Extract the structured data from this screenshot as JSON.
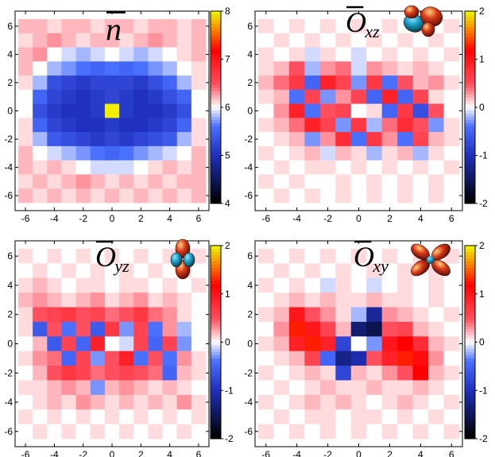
{
  "chart_data": [
    {
      "type": "heatmap",
      "title": "n",
      "title_subscript": "",
      "xlabel": "",
      "ylabel": "",
      "xlim": [
        -6.5,
        6.5
      ],
      "ylim": [
        -6.5,
        6.5
      ],
      "xticks": [
        "-6",
        "-4",
        "-2",
        "0",
        "2",
        "4",
        "6"
      ],
      "yticks": [
        "6",
        "4",
        "2",
        "0",
        "-2",
        "-4",
        "-6"
      ],
      "colorbar": {
        "range": [
          4,
          8
        ],
        "ticks": [
          "8",
          "7",
          "6",
          "5",
          "4"
        ]
      },
      "colormap": [
        [
          0,
          "#000000"
        ],
        [
          0.25,
          "#2030c0"
        ],
        [
          0.4,
          "#4a70ff"
        ],
        [
          0.5,
          "#ffffff"
        ],
        [
          0.62,
          "#ff5060"
        ],
        [
          0.8,
          "#ff0000"
        ],
        [
          1,
          "#f0f000"
        ]
      ],
      "orbital_icon": "none",
      "values": [
        [
          6.2,
          6.2,
          6.1,
          6.2,
          6.2,
          6.1,
          6.2,
          6.2,
          6.1,
          6.2,
          6.2,
          6.1,
          6.2
        ],
        [
          6.1,
          6.2,
          6.3,
          6.2,
          6.1,
          6.2,
          6.2,
          6.1,
          6.2,
          6.3,
          6.2,
          6.1,
          6.2
        ],
        [
          6.2,
          6.3,
          6.0,
          5.9,
          5.8,
          5.9,
          6.0,
          5.9,
          5.8,
          5.9,
          6.0,
          6.1,
          6.2
        ],
        [
          6.2,
          6.0,
          5.8,
          5.7,
          5.6,
          5.5,
          5.6,
          5.5,
          5.6,
          5.7,
          5.8,
          6.0,
          6.1
        ],
        [
          6.1,
          5.8,
          5.3,
          5.2,
          5.1,
          5.2,
          5.2,
          5.2,
          5.1,
          5.3,
          5.5,
          5.8,
          6.1
        ],
        [
          6.0,
          5.5,
          5.2,
          5.1,
          5.0,
          5.1,
          5.2,
          5.1,
          5.0,
          5.1,
          5.3,
          5.5,
          6.0
        ],
        [
          6.0,
          5.3,
          5.1,
          5.0,
          5.0,
          5.1,
          8.0,
          5.1,
          5.0,
          5.0,
          5.1,
          5.3,
          6.0
        ],
        [
          6.1,
          5.5,
          5.2,
          5.1,
          5.0,
          5.0,
          5.1,
          5.0,
          5.0,
          5.1,
          5.2,
          5.5,
          6.1
        ],
        [
          6.1,
          5.8,
          5.4,
          5.3,
          5.2,
          5.1,
          5.2,
          5.1,
          5.2,
          5.3,
          5.4,
          5.8,
          6.1
        ],
        [
          6.2,
          6.0,
          5.9,
          5.8,
          5.7,
          5.6,
          5.5,
          5.6,
          5.7,
          5.8,
          5.9,
          6.0,
          6.2
        ],
        [
          6.2,
          6.1,
          6.2,
          6.1,
          6.0,
          5.9,
          5.9,
          5.9,
          6.0,
          6.1,
          6.2,
          6.1,
          6.2
        ],
        [
          6.1,
          6.2,
          6.1,
          6.2,
          6.3,
          6.2,
          6.1,
          6.2,
          6.1,
          6.2,
          6.1,
          6.2,
          6.2
        ],
        [
          6.2,
          6.1,
          6.2,
          6.1,
          6.2,
          6.1,
          6.2,
          6.1,
          6.2,
          6.1,
          6.2,
          6.1,
          6.2
        ]
      ]
    },
    {
      "type": "heatmap",
      "title": "O",
      "title_subscript": "xz",
      "xlabel": "",
      "ylabel": "",
      "xlim": [
        -6.5,
        6.5
      ],
      "ylim": [
        -6.5,
        6.5
      ],
      "xticks": [
        "-6",
        "-4",
        "-2",
        "0",
        "2",
        "4",
        "6"
      ],
      "yticks": [
        "6",
        "4",
        "2",
        "0",
        "-2",
        "-4",
        "-6"
      ],
      "colorbar": {
        "range": [
          -2,
          2
        ],
        "ticks": [
          "2",
          "1",
          "0",
          "-1",
          "-2"
        ]
      },
      "colormap": [
        [
          0,
          "#000000"
        ],
        [
          0.25,
          "#2030c0"
        ],
        [
          0.4,
          "#4a70ff"
        ],
        [
          0.5,
          "#ffffff"
        ],
        [
          0.62,
          "#ff5060"
        ],
        [
          0.8,
          "#ff0000"
        ],
        [
          1,
          "#f0f000"
        ]
      ],
      "orbital_icon": "dxz",
      "values": [
        [
          0.1,
          0.0,
          0.1,
          0.0,
          0.1,
          0.0,
          0.1,
          0.0,
          0.1,
          0.0,
          0.1,
          0.0,
          0.1
        ],
        [
          0.0,
          0.1,
          0.0,
          0.1,
          0.0,
          0.1,
          0.0,
          0.1,
          0.0,
          0.1,
          0.0,
          0.1,
          0.0
        ],
        [
          0.1,
          0.0,
          0.1,
          -0.1,
          0.1,
          0.0,
          -0.1,
          0.0,
          0.1,
          0.0,
          0.1,
          0.0,
          0.1
        ],
        [
          0.1,
          0.2,
          0.5,
          -0.2,
          0.3,
          0.4,
          -0.1,
          0.3,
          0.2,
          0.1,
          0.2,
          0.1,
          0.0
        ],
        [
          0.2,
          0.4,
          0.7,
          -0.5,
          0.9,
          0.6,
          -0.3,
          0.7,
          -0.4,
          0.5,
          0.2,
          0.3,
          0.1
        ],
        [
          0.1,
          0.2,
          -0.4,
          0.6,
          -0.3,
          0.3,
          0.6,
          -0.5,
          0.9,
          -0.5,
          0.6,
          0.1,
          0.0
        ],
        [
          0.0,
          0.3,
          0.9,
          -0.4,
          0.5,
          0.6,
          0.0,
          0.1,
          -0.5,
          0.7,
          -0.7,
          0.5,
          0.0
        ],
        [
          0.1,
          0.2,
          0.4,
          0.9,
          0.6,
          -0.3,
          0.7,
          -0.2,
          0.4,
          0.8,
          0.5,
          -0.3,
          0.1
        ],
        [
          0.0,
          0.1,
          0.2,
          -0.3,
          0.3,
          0.8,
          -0.4,
          0.7,
          0.3,
          -0.4,
          0.6,
          0.2,
          0.1
        ],
        [
          0.1,
          0.0,
          0.1,
          0.2,
          -0.1,
          0.2,
          0.1,
          -0.2,
          0.1,
          0.2,
          -0.2,
          0.1,
          0.0
        ],
        [
          0.0,
          0.1,
          0.0,
          0.1,
          0.1,
          0.0,
          0.1,
          0.0,
          0.1,
          0.0,
          0.1,
          0.0,
          0.1
        ],
        [
          0.1,
          0.0,
          0.1,
          0.0,
          0.0,
          0.1,
          0.0,
          0.1,
          0.0,
          0.1,
          0.0,
          0.1,
          0.0
        ],
        [
          0.0,
          0.1,
          0.0,
          0.1,
          0.0,
          0.1,
          0.0,
          0.1,
          0.0,
          0.1,
          0.0,
          0.1,
          0.0
        ]
      ]
    },
    {
      "type": "heatmap",
      "title": "O",
      "title_subscript": "yz",
      "xlabel": "",
      "ylabel": "",
      "xlim": [
        -6.5,
        6.5
      ],
      "ylim": [
        -6.5,
        6.5
      ],
      "xticks": [
        "-6",
        "-4",
        "-2",
        "0",
        "2",
        "4",
        "6"
      ],
      "yticks": [
        "6",
        "4",
        "2",
        "0",
        "-2",
        "-4",
        "-6"
      ],
      "colorbar": {
        "range": [
          -2,
          2
        ],
        "ticks": [
          "2",
          "1",
          "0",
          "-1",
          "-2"
        ]
      },
      "colormap": [
        [
          0,
          "#000000"
        ],
        [
          0.25,
          "#2030c0"
        ],
        [
          0.4,
          "#4a70ff"
        ],
        [
          0.5,
          "#ffffff"
        ],
        [
          0.62,
          "#ff5060"
        ],
        [
          0.8,
          "#ff0000"
        ],
        [
          1,
          "#f0f000"
        ]
      ],
      "orbital_icon": "dyz",
      "values": [
        [
          0.1,
          0.0,
          0.1,
          0.0,
          0.1,
          0.0,
          0.1,
          0.0,
          0.1,
          0.0,
          0.1,
          0.0,
          0.1
        ],
        [
          0.0,
          0.1,
          0.0,
          0.1,
          0.0,
          0.1,
          0.0,
          0.1,
          0.0,
          0.1,
          0.0,
          0.1,
          0.0
        ],
        [
          0.1,
          0.2,
          0.1,
          0.0,
          0.1,
          0.1,
          0.0,
          0.1,
          0.1,
          0.0,
          0.1,
          0.0,
          0.1
        ],
        [
          0.2,
          0.3,
          0.2,
          0.1,
          0.2,
          0.3,
          0.1,
          0.2,
          0.3,
          0.1,
          0.2,
          0.1,
          0.0
        ],
        [
          0.1,
          0.5,
          0.6,
          0.7,
          0.5,
          0.6,
          0.4,
          0.5,
          0.7,
          0.4,
          0.3,
          0.1,
          0.0
        ],
        [
          0.1,
          -0.6,
          0.5,
          -0.4,
          0.5,
          -0.6,
          0.7,
          -0.3,
          0.6,
          -0.4,
          0.3,
          -0.2,
          0.0
        ],
        [
          0.0,
          0.2,
          -0.6,
          0.6,
          -0.5,
          0.9,
          0.0,
          -0.1,
          0.6,
          -0.5,
          0.6,
          -0.3,
          0.0
        ],
        [
          0.1,
          0.3,
          0.4,
          -0.5,
          0.6,
          -0.3,
          0.5,
          0.9,
          -0.4,
          0.5,
          -0.4,
          0.3,
          0.1
        ],
        [
          0.0,
          0.2,
          0.5,
          0.7,
          0.6,
          0.4,
          0.5,
          0.6,
          0.5,
          0.4,
          -0.5,
          0.2,
          0.1
        ],
        [
          0.1,
          0.1,
          0.2,
          0.3,
          0.2,
          -0.3,
          0.2,
          0.3,
          0.2,
          0.1,
          0.2,
          0.1,
          0.0
        ],
        [
          0.0,
          0.1,
          0.2,
          0.1,
          0.3,
          0.2,
          0.1,
          0.2,
          0.1,
          0.2,
          0.1,
          0.3,
          0.1
        ],
        [
          0.1,
          0.0,
          0.1,
          0.0,
          0.1,
          0.0,
          0.1,
          0.0,
          0.1,
          0.0,
          0.1,
          0.0,
          0.1
        ],
        [
          0.0,
          0.1,
          0.0,
          0.1,
          0.0,
          0.1,
          0.0,
          0.1,
          0.0,
          0.1,
          0.0,
          0.1,
          0.0
        ]
      ]
    },
    {
      "type": "heatmap",
      "title": "O",
      "title_subscript": "xy",
      "xlabel": "",
      "ylabel": "",
      "xlim": [
        -6.5,
        6.5
      ],
      "ylim": [
        -6.5,
        6.5
      ],
      "xticks": [
        "-6",
        "-4",
        "-2",
        "0",
        "2",
        "4",
        "6"
      ],
      "yticks": [
        "6",
        "4",
        "2",
        "0",
        "-2",
        "-4",
        "-6"
      ],
      "colorbar": {
        "range": [
          -2,
          2
        ],
        "ticks": [
          "2",
          "1",
          "0",
          "-1",
          "-2"
        ]
      },
      "colormap": [
        [
          0,
          "#000000"
        ],
        [
          0.25,
          "#2030c0"
        ],
        [
          0.4,
          "#4a70ff"
        ],
        [
          0.5,
          "#ffffff"
        ],
        [
          0.62,
          "#ff5060"
        ],
        [
          0.8,
          "#ff0000"
        ],
        [
          1,
          "#f0f000"
        ]
      ],
      "orbital_icon": "dxy",
      "values": [
        [
          0.1,
          0.0,
          0.1,
          0.0,
          0.1,
          0.0,
          0.1,
          0.0,
          0.1,
          0.0,
          0.1,
          0.0,
          0.1
        ],
        [
          0.0,
          0.1,
          0.0,
          0.1,
          0.0,
          0.1,
          0.0,
          0.1,
          0.0,
          0.1,
          0.0,
          0.1,
          0.0
        ],
        [
          0.1,
          0.0,
          0.1,
          0.0,
          -0.1,
          0.1,
          0.0,
          -0.1,
          0.0,
          0.1,
          0.0,
          0.1,
          0.0
        ],
        [
          0.0,
          0.1,
          0.2,
          0.1,
          0.2,
          0.1,
          0.1,
          0.2,
          0.1,
          0.1,
          0.0,
          0.1,
          0.0
        ],
        [
          0.1,
          0.2,
          1.0,
          0.5,
          0.3,
          0.1,
          -0.2,
          -1.2,
          0.3,
          0.2,
          0.1,
          0.0,
          0.1
        ],
        [
          0.0,
          0.3,
          1.3,
          1.0,
          0.6,
          0.2,
          -1.4,
          -1.6,
          0.5,
          0.6,
          0.2,
          0.1,
          0.0
        ],
        [
          0.1,
          0.2,
          0.9,
          1.3,
          0.9,
          -0.8,
          0.0,
          -0.3,
          1.0,
          1.2,
          0.8,
          0.2,
          0.1
        ],
        [
          0.0,
          0.1,
          0.2,
          0.6,
          -0.5,
          -1.3,
          -1.1,
          0.5,
          0.9,
          1.3,
          1.1,
          0.3,
          0.0
        ],
        [
          0.1,
          0.0,
          0.1,
          0.2,
          0.1,
          -0.8,
          0.2,
          0.1,
          0.3,
          0.5,
          1.2,
          0.2,
          0.1
        ],
        [
          0.0,
          0.1,
          0.0,
          0.1,
          0.2,
          0.1,
          0.1,
          0.2,
          0.1,
          0.1,
          0.2,
          0.1,
          0.0
        ],
        [
          0.1,
          0.0,
          0.1,
          0.2,
          0.1,
          0.2,
          0.1,
          0.0,
          0.1,
          0.2,
          0.1,
          0.0,
          0.1
        ],
        [
          0.0,
          0.1,
          0.0,
          0.1,
          0.1,
          0.0,
          0.1,
          0.1,
          0.0,
          0.1,
          0.0,
          0.1,
          0.0
        ],
        [
          0.1,
          0.0,
          0.1,
          0.0,
          0.1,
          0.0,
          0.1,
          0.0,
          0.1,
          0.0,
          0.1,
          0.0,
          0.1
        ]
      ]
    }
  ]
}
